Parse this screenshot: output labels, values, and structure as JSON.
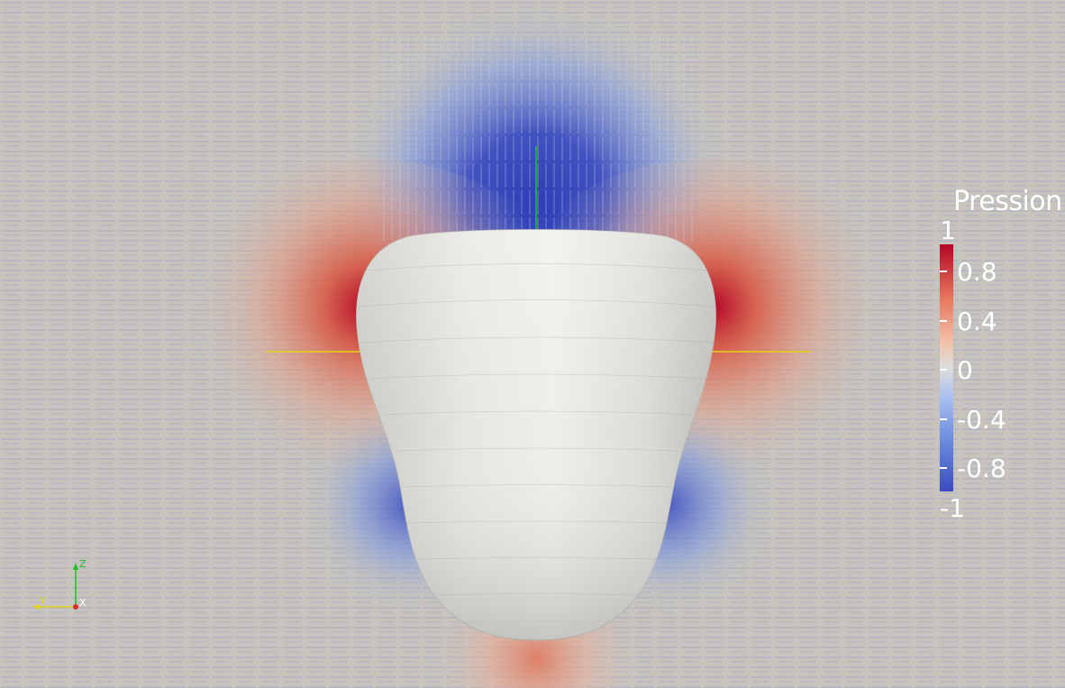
{
  "legend": {
    "title": "Pression",
    "max_label": "1",
    "min_label": "-1",
    "ticks": [
      "0.8",
      "0.4",
      "0",
      "-0.4",
      "-0.8"
    ],
    "colors": {
      "max": "#b40426",
      "mid": "#dddddd",
      "min": "#3b4cc0"
    }
  },
  "orientation_axes": {
    "z_label": "Z",
    "y_label": "Y",
    "x_label": "X",
    "z_color": "#1fbf1f",
    "y_color": "#e6d21a",
    "x_color": "#d92b2b"
  },
  "scene": {
    "background": "#c7c4be",
    "body_color": "#e9e8e4",
    "vector_glyph_color": "#6b74c9"
  }
}
